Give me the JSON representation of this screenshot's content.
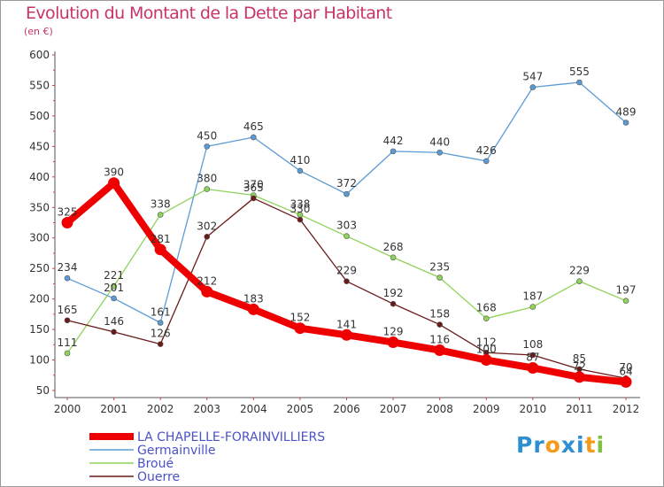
{
  "header": {
    "title": "Evolution du Montant de la Dette par Habitant",
    "subtitle": "(en €)"
  },
  "colors": {
    "title": "#c8336a",
    "axis_ticks": "#e03a3a",
    "legend_text": "#4a52c8"
  },
  "logo": {
    "letters": [
      {
        "ch": "P",
        "color": "#2e8fd0"
      },
      {
        "ch": "r",
        "color": "#2e8fd0"
      },
      {
        "ch": "o",
        "color": "#f39b1a"
      },
      {
        "ch": "x",
        "color": "#2e8fd0"
      },
      {
        "ch": "i",
        "color": "#2e8fd0"
      },
      {
        "ch": "t",
        "color": "#f39b1a"
      },
      {
        "ch": "i",
        "color": "#7cc242"
      }
    ]
  },
  "chart_data": {
    "type": "line",
    "title": "Evolution du Montant de la Dette par Habitant",
    "subtitle": "(en €)",
    "xlabel": "",
    "ylabel": "",
    "x": [
      "2000",
      "2001",
      "2002",
      "2003",
      "2004",
      "2005",
      "2006",
      "2007",
      "2008",
      "2009",
      "2010",
      "2011",
      "2012"
    ],
    "ylim": [
      50,
      600
    ],
    "yticks": [
      50,
      100,
      150,
      200,
      250,
      300,
      350,
      400,
      450,
      500,
      550,
      600
    ],
    "grid": false,
    "legend_position": "bottom-left",
    "series": [
      {
        "name": "LA CHAPELLE-FORAINVILLIERS",
        "color": "#ee0000",
        "thick": true,
        "values": [
          325,
          390,
          281,
          212,
          183,
          152,
          141,
          129,
          116,
          100,
          87,
          72,
          64
        ]
      },
      {
        "name": "Germainville",
        "color": "#5b9bd5",
        "thick": false,
        "values": [
          234,
          201,
          161,
          450,
          465,
          410,
          372,
          442,
          440,
          426,
          547,
          555,
          489
        ]
      },
      {
        "name": "Broué",
        "color": "#8fd35a",
        "thick": false,
        "values": [
          111,
          221,
          338,
          380,
          370,
          338,
          303,
          268,
          235,
          168,
          187,
          229,
          197
        ]
      },
      {
        "name": "Ouerre",
        "color": "#6b1a1a",
        "thick": false,
        "values": [
          165,
          146,
          126,
          302,
          365,
          330,
          229,
          192,
          158,
          112,
          108,
          85,
          70
        ]
      }
    ]
  }
}
